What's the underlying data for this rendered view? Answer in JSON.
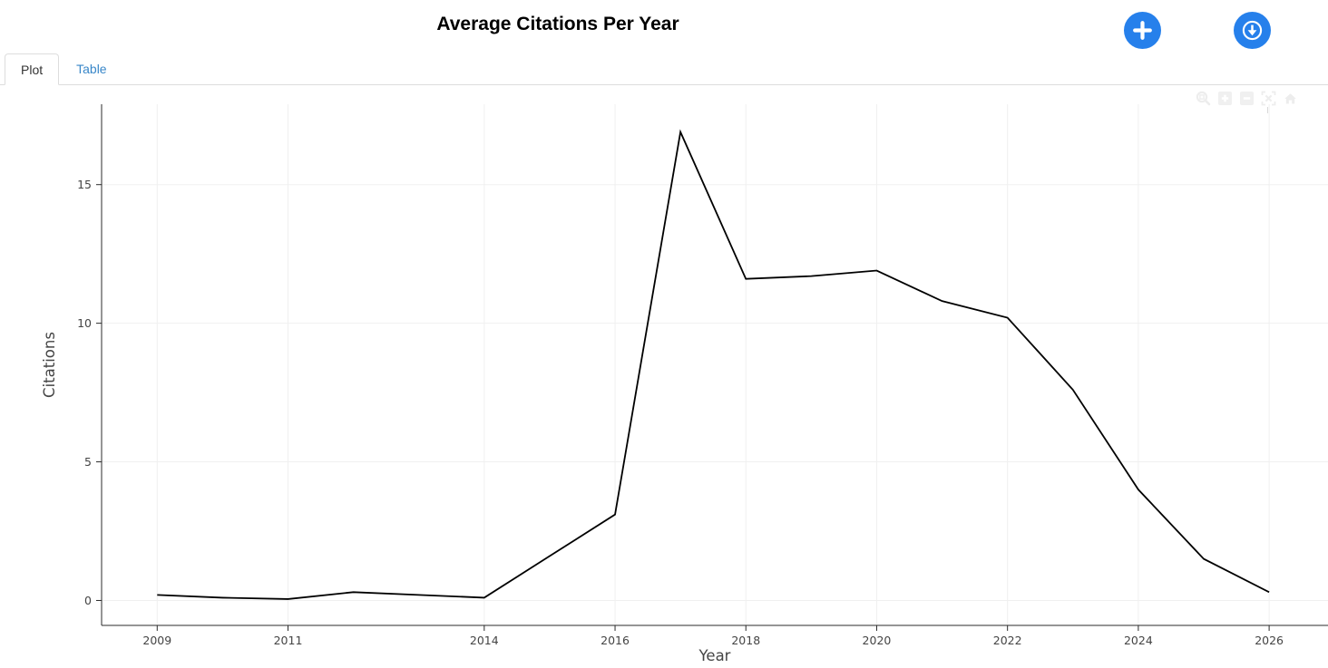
{
  "header": {
    "title": "Average Citations Per Year",
    "accent_color": "#2680eb",
    "actions": [
      {
        "name": "add",
        "icon": "plus-icon"
      },
      {
        "name": "download",
        "icon": "download-circle-icon"
      }
    ]
  },
  "tabs": [
    {
      "label": "Plot",
      "active": true
    },
    {
      "label": "Table",
      "active": false
    }
  ],
  "link_color": "#3987c9",
  "plot_toolbar": {
    "icons": [
      "box-zoom-icon",
      "zoom-in-icon",
      "zoom-out-icon",
      "reset-view-icon",
      "home-icon"
    ],
    "icon_color": "#ededed"
  },
  "chart_data": {
    "type": "line",
    "title": "",
    "xlabel": "Year",
    "ylabel": "Citations",
    "x": [
      2009,
      2010,
      2011,
      2012,
      2013,
      2014,
      2015,
      2016,
      2017,
      2018,
      2019,
      2020,
      2021,
      2022,
      2023,
      2024,
      2025,
      2026
    ],
    "series": [
      {
        "name": "Average Citations",
        "values": [
          0.2,
          0.1,
          0.05,
          0.3,
          0.2,
          0.1,
          1.6,
          3.1,
          16.9,
          11.6,
          11.7,
          11.9,
          10.8,
          10.2,
          7.6,
          4.0,
          1.5,
          0.3
        ]
      }
    ],
    "x_ticks": [
      2009,
      2011,
      2014,
      2016,
      2018,
      2020,
      2022,
      2024,
      2026
    ],
    "y_ticks": [
      0,
      5,
      10,
      15
    ],
    "xlim": [
      2008.15,
      2026.9
    ],
    "ylim": [
      -0.9,
      17.9
    ],
    "grid": true,
    "legend": "none",
    "line_color": "#000000",
    "grid_color": "#f0f0f0",
    "axis_color": "#2b2b2b",
    "tick_color": "#444444"
  }
}
